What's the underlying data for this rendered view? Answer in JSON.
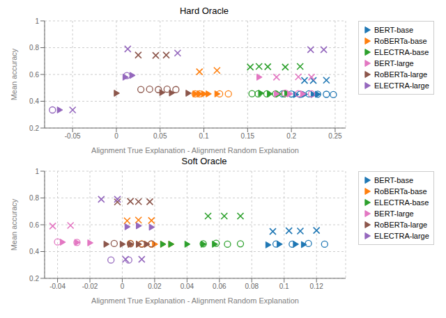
{
  "chart_data": [
    {
      "type": "scatter",
      "title": "Hard Oracle",
      "x_label": "Alignment True Explanation - Alignment Random Explanation",
      "y_label": "Mean accuracy",
      "xlim": [
        -0.082,
        0.262
      ],
      "ylim": [
        0.2,
        1.0
      ],
      "xticks": [
        -0.05,
        0,
        0.05,
        0.1,
        0.15,
        0.2,
        0.25
      ],
      "yticks": [
        0.2,
        0.4,
        0.6,
        0.8,
        1.0
      ],
      "legend": "upper right",
      "series": [
        {
          "name": "BERT-base",
          "color": "#1f77b4",
          "marks": [
            {
              "marker": "triangle",
              "x": [
                0.195,
                0.205,
                0.215,
                0.225,
                0.23
              ],
              "y": [
                0.455,
                0.45,
                0.452,
                0.45,
                0.452
              ]
            },
            {
              "marker": "circle",
              "x": [
                0.19,
                0.2,
                0.21,
                0.22,
                0.23,
                0.24,
                0.248
              ],
              "y": [
                0.455,
                0.454,
                0.452,
                0.455,
                0.453,
                0.452,
                0.45
              ]
            },
            {
              "marker": "x",
              "x": [
                0.215,
                0.225,
                0.24
              ],
              "y": [
                0.555,
                0.555,
                0.557
              ]
            }
          ]
        },
        {
          "name": "RoBERTa-base",
          "color": "#ff7f0e",
          "marks": [
            {
              "marker": "triangle",
              "x": [
                0.09,
                0.095,
                0.1,
                0.105,
                0.115
              ],
              "y": [
                0.455,
                0.455,
                0.455,
                0.455,
                0.455
              ]
            },
            {
              "marker": "circle",
              "x": [
                0.09,
                0.095,
                0.118,
                0.128
              ],
              "y": [
                0.455,
                0.455,
                0.455,
                0.455
              ]
            },
            {
              "marker": "x",
              "x": [
                0.095,
                0.115
              ],
              "y": [
                0.62,
                0.63
              ]
            }
          ]
        },
        {
          "name": "ELECTRA-base",
          "color": "#2ca02c",
          "marks": [
            {
              "marker": "triangle",
              "x": [
                0.165,
                0.175,
                0.185,
                0.195
              ],
              "y": [
                0.46,
                0.455,
                0.453,
                0.455
              ]
            },
            {
              "marker": "circle",
              "x": [
                0.155,
                0.162,
                0.172,
                0.182,
                0.192
              ],
              "y": [
                0.456,
                0.455,
                0.455,
                0.455,
                0.456
              ]
            },
            {
              "marker": "x",
              "x": [
                0.153,
                0.163,
                0.173,
                0.193,
                0.21
              ],
              "y": [
                0.655,
                0.66,
                0.658,
                0.655,
                0.66
              ]
            }
          ]
        },
        {
          "name": "BERT-large",
          "color": "#e377c2",
          "marks": [
            {
              "marker": "triangle",
              "x": [
                0.163,
                0.183,
                0.198,
                0.213
              ],
              "y": [
                0.58,
                0.455,
                0.455,
                0.455
              ]
            },
            {
              "marker": "circle",
              "x": [
                0.193,
                0.208,
                0.223
              ],
              "y": [
                0.46,
                0.457,
                0.455
              ]
            },
            {
              "marker": "x",
              "x": [
                0.183,
                0.208,
                0.223
              ],
              "y": [
                0.58,
                0.582,
                0.58
              ]
            }
          ]
        },
        {
          "name": "RoBERTa-large",
          "color": "#8c564b",
          "marks": [
            {
              "marker": "triangle",
              "x": [
                0.0,
                0.052,
                0.063,
                0.082
              ],
              "y": [
                0.46,
                0.465,
                0.462,
                0.46
              ]
            },
            {
              "marker": "circle",
              "x": [
                0.028,
                0.038,
                0.048,
                0.058,
                0.068
              ],
              "y": [
                0.488,
                0.49,
                0.487,
                0.49,
                0.487
              ]
            },
            {
              "marker": "x",
              "x": [
                0.025,
                0.045,
                0.057
              ],
              "y": [
                0.745,
                0.742,
                0.745
              ]
            }
          ]
        },
        {
          "name": "ELECTRA-large",
          "color": "#9467bd",
          "marks": [
            {
              "marker": "triangle",
              "x": [
                -0.065,
                0.01,
                0.018
              ],
              "y": [
                0.335,
                0.58,
                0.593
              ]
            },
            {
              "marker": "circle",
              "x": [
                -0.073,
                0.012
              ],
              "y": [
                0.335,
                0.592
              ]
            },
            {
              "marker": "x",
              "x": [
                -0.05,
                0.013,
                0.07,
                0.222,
                0.237
              ],
              "y": [
                0.335,
                0.79,
                0.76,
                0.785,
                0.785
              ]
            }
          ]
        }
      ]
    },
    {
      "type": "scatter",
      "title": "Soft Oracle",
      "x_label": "Alignment True Explanation - Alignment Random Explanation",
      "y_label": "Mean accuracy",
      "xlim": [
        -0.048,
        0.138
      ],
      "ylim": [
        0.2,
        1.0
      ],
      "xticks": [
        -0.04,
        -0.02,
        0,
        0.02,
        0.04,
        0.06,
        0.08,
        0.1,
        0.12
      ],
      "yticks": [
        0.2,
        0.4,
        0.6,
        0.8,
        1.0
      ],
      "legend": "upper right",
      "series": [
        {
          "name": "BERT-base",
          "color": "#1f77b4",
          "marks": [
            {
              "marker": "triangle",
              "x": [
                0.09,
                0.097,
                0.107,
                0.112
              ],
              "y": [
                0.45,
                0.455,
                0.455,
                0.452
              ]
            },
            {
              "marker": "circle",
              "x": [
                0.095,
                0.105,
                0.115,
                0.125
              ],
              "y": [
                0.456,
                0.455,
                0.46,
                0.455
              ]
            },
            {
              "marker": "x",
              "x": [
                0.093,
                0.103,
                0.11,
                0.12
              ],
              "y": [
                0.55,
                0.555,
                0.553,
                0.558
              ]
            }
          ]
        },
        {
          "name": "RoBERTa-base",
          "color": "#ff7f0e",
          "marks": [
            {
              "marker": "triangle",
              "x": [
                0.005,
                0.01,
                0.015,
                0.02,
                0.025,
                0.03
              ],
              "y": [
                0.455,
                0.455,
                0.455,
                0.455,
                0.455,
                0.455
              ]
            },
            {
              "marker": "circle",
              "x": [
                0.005,
                0.012,
                0.018
              ],
              "y": [
                0.46,
                0.458,
                0.455
              ]
            },
            {
              "marker": "x",
              "x": [
                0.003,
                0.01,
                0.018
              ],
              "y": [
                0.63,
                0.635,
                0.632
              ]
            }
          ]
        },
        {
          "name": "ELECTRA-base",
          "color": "#2ca02c",
          "marks": [
            {
              "marker": "triangle",
              "x": [
                0.025,
                0.03,
                0.04,
                0.05,
                0.057
              ],
              "y": [
                0.455,
                0.455,
                0.455,
                0.455,
                0.455
              ]
            },
            {
              "marker": "circle",
              "x": [
                0.05,
                0.058,
                0.065,
                0.073
              ],
              "y": [
                0.458,
                0.462,
                0.455,
                0.458
              ]
            },
            {
              "marker": "x",
              "x": [
                0.053,
                0.063,
                0.073
              ],
              "y": [
                0.665,
                0.665,
                0.665
              ]
            }
          ]
        },
        {
          "name": "BERT-large",
          "color": "#e377c2",
          "marks": [
            {
              "marker": "triangle",
              "x": [
                -0.037,
                -0.028,
                -0.02
              ],
              "y": [
                0.47,
                0.468,
                0.465
              ]
            },
            {
              "marker": "circle",
              "x": [
                -0.04,
                -0.028
              ],
              "y": [
                0.472,
                0.468
              ]
            },
            {
              "marker": "x",
              "x": [
                -0.043,
                -0.032
              ],
              "y": [
                0.59,
                0.595
              ]
            }
          ]
        },
        {
          "name": "RoBERTa-large",
          "color": "#8c564b",
          "marks": [
            {
              "marker": "triangle",
              "x": [
                -0.01,
                0.0,
                0.005,
                0.01,
                0.015
              ],
              "y": [
                0.455,
                0.455,
                0.455,
                0.455,
                0.455
              ]
            },
            {
              "marker": "circle",
              "x": [
                -0.005,
                0.005,
                0.012,
                0.018
              ],
              "y": [
                0.46,
                0.458,
                0.455,
                0.458
              ]
            },
            {
              "marker": "x",
              "x": [
                -0.003,
                0.005,
                0.01,
                0.017
              ],
              "y": [
                0.77,
                0.775,
                0.773,
                0.772
              ]
            }
          ]
        },
        {
          "name": "ELECTRA-large",
          "color": "#9467bd",
          "marks": [
            {
              "marker": "triangle",
              "x": [
                0.003,
                0.01,
                0.018
              ],
              "y": [
                0.585,
                0.592,
                0.582
              ]
            },
            {
              "marker": "circle",
              "x": [
                -0.007,
                0.004
              ],
              "y": [
                0.337,
                0.337
              ]
            },
            {
              "marker": "x",
              "x": [
                -0.013,
                -0.003,
                0.002,
                0.012
              ],
              "y": [
                0.79,
                0.79,
                0.342,
                0.342
              ]
            }
          ]
        }
      ]
    }
  ]
}
